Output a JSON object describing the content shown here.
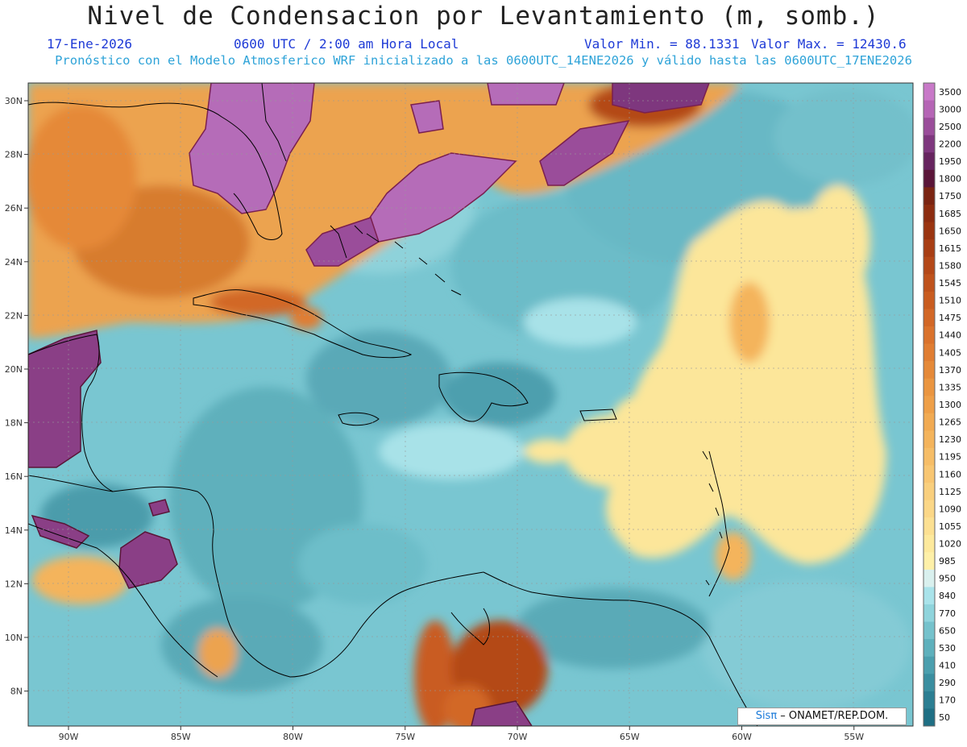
{
  "title": "Nivel de Condensacion por Levantamiento (m, somb.)",
  "date": "17-Ene-2026",
  "time": "0600 UTC / 2:00 am Hora Local",
  "min_value": "Valor Min. = 88.1331",
  "max_value": "Valor Max. = 12430.6",
  "model_line": "Pronóstico con el Modelo Atmosferico WRF inicializado a las 0600UTC_14ENE2026 y válido hasta las  0600UTC_17ENE2026",
  "credit": {
    "brand": "Sisπ",
    "text": " – ONAMET/REP.DOM."
  },
  "axes": {
    "lat_labels": [
      "30N",
      "28N",
      "26N",
      "24N",
      "22N",
      "20N",
      "18N",
      "16N",
      "14N",
      "12N",
      "10N",
      "8N"
    ],
    "lat_values": [
      30,
      28,
      26,
      24,
      22,
      20,
      18,
      16,
      14,
      12,
      10,
      8
    ],
    "lon_labels": [
      "90W",
      "85W",
      "80W",
      "75W",
      "70W",
      "65W",
      "60W",
      "55W"
    ],
    "lon_values": [
      -90,
      -85,
      -80,
      -75,
      -70,
      -65,
      -60,
      -55
    ]
  },
  "colorbar": {
    "levels": [
      "3500",
      "3000",
      "2500",
      "2200",
      "1950",
      "1800",
      "1750",
      "1685",
      "1650",
      "1615",
      "1580",
      "1545",
      "1510",
      "1475",
      "1440",
      "1405",
      "1370",
      "1335",
      "1300",
      "1265",
      "1230",
      "1195",
      "1160",
      "1125",
      "1090",
      "1055",
      "1020",
      "985",
      "950",
      "840",
      "770",
      "650",
      "530",
      "410",
      "290",
      "170",
      "50"
    ],
    "colors": [
      "#c879c8",
      "#b565b5",
      "#9a4d9a",
      "#7e377e",
      "#66245f",
      "#5a1538",
      "#7a2412",
      "#8c2c10",
      "#9a3410",
      "#a83e14",
      "#b44818",
      "#bf521c",
      "#c95c20",
      "#d26726",
      "#da722c",
      "#e07d32",
      "#e58938",
      "#ea9540",
      "#ee9f48",
      "#f1aa52",
      "#f4b45c",
      "#f6bd67",
      "#f8c672",
      "#f9cf7d",
      "#fbd787",
      "#fce092",
      "#fde99c",
      "#fef0a8",
      "#d9f0ee",
      "#a9e3ea",
      "#8fd4dc",
      "#75c2cc",
      "#5eb0bc",
      "#4b9fae",
      "#3a8ea0",
      "#2b7e92",
      "#1f6f84"
    ]
  }
}
